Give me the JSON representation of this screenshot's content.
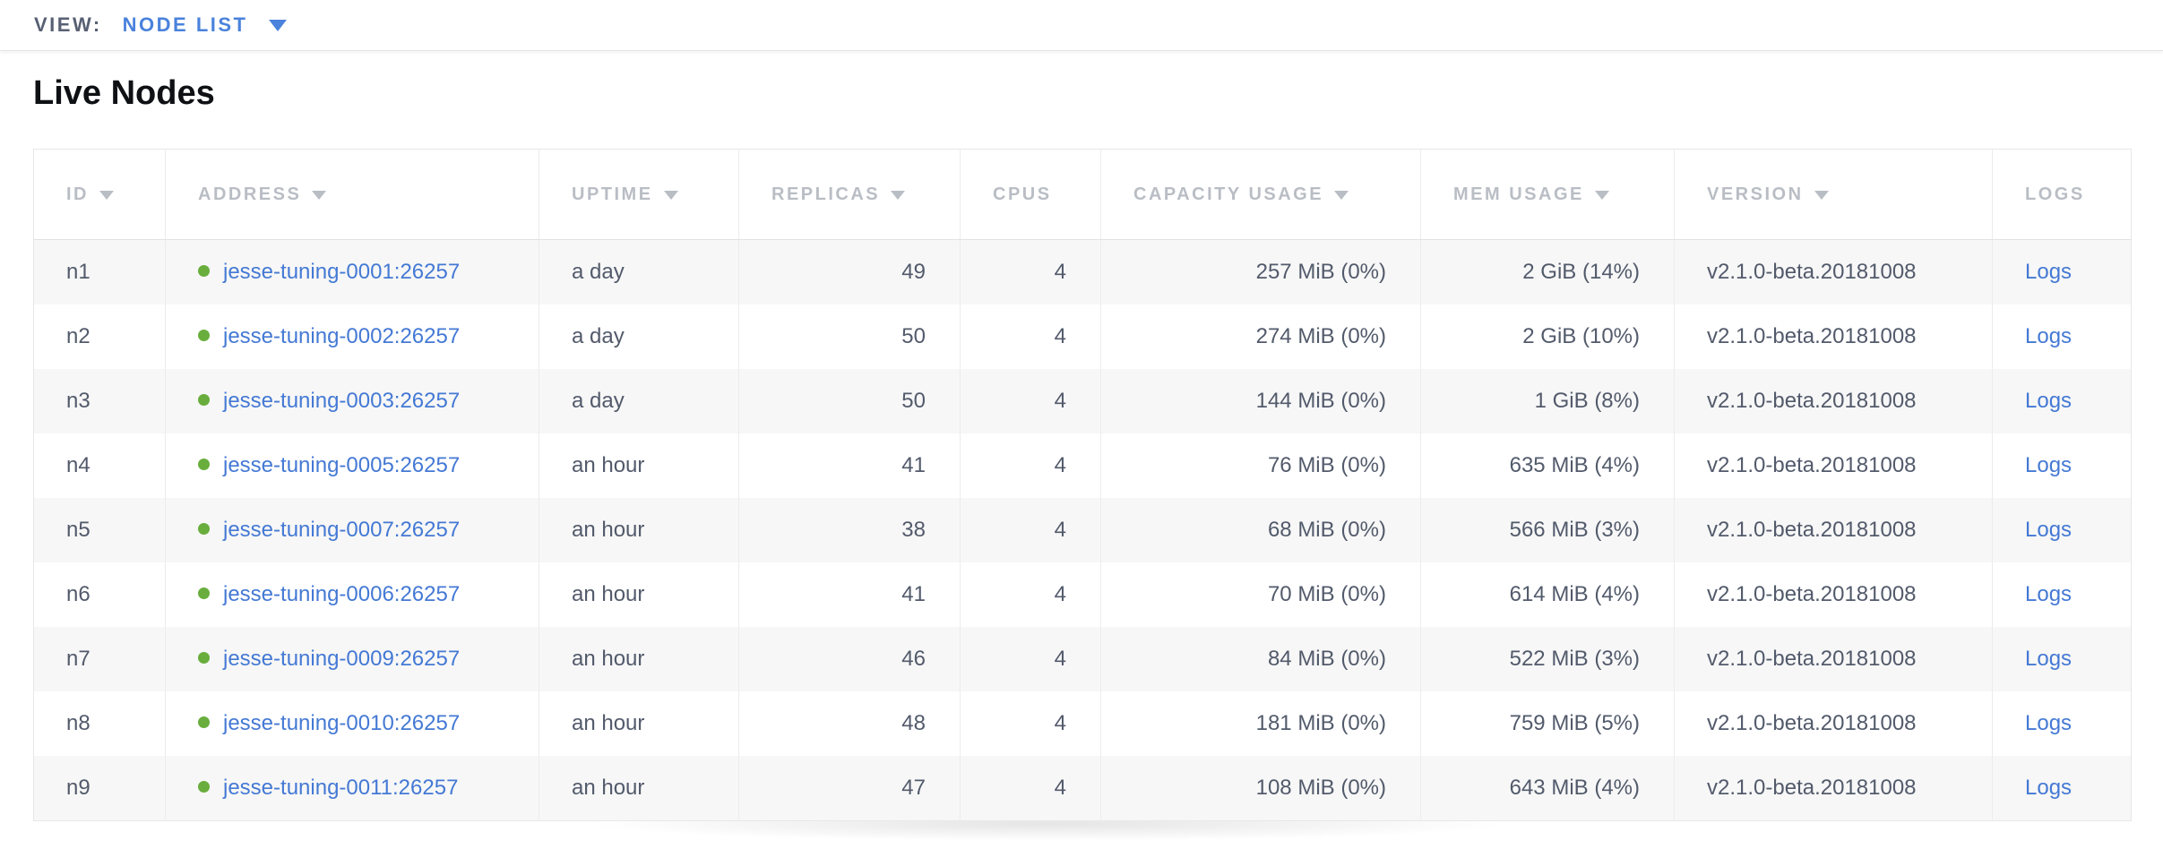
{
  "view_bar": {
    "label": "VIEW:",
    "selected": "NODE LIST"
  },
  "page": {
    "title": "Live Nodes"
  },
  "table": {
    "columns": [
      {
        "key": "id",
        "label": "ID",
        "sortable": true,
        "align": "left"
      },
      {
        "key": "address",
        "label": "ADDRESS",
        "sortable": true,
        "align": "left"
      },
      {
        "key": "uptime",
        "label": "UPTIME",
        "sortable": true,
        "align": "left"
      },
      {
        "key": "replicas",
        "label": "REPLICAS",
        "sortable": true,
        "align": "right"
      },
      {
        "key": "cpus",
        "label": "CPUS",
        "sortable": false,
        "align": "right"
      },
      {
        "key": "capacity",
        "label": "CAPACITY USAGE",
        "sortable": true,
        "align": "right"
      },
      {
        "key": "mem",
        "label": "MEM USAGE",
        "sortable": true,
        "align": "right"
      },
      {
        "key": "version",
        "label": "VERSION",
        "sortable": true,
        "align": "left"
      },
      {
        "key": "logs",
        "label": "LOGS",
        "sortable": false,
        "align": "left"
      }
    ],
    "rows": [
      {
        "id": "n1",
        "address": "jesse-tuning-0001:26257",
        "uptime": "a day",
        "replicas": "49",
        "cpus": "4",
        "capacity": "257 MiB (0%)",
        "mem": "2 GiB (14%)",
        "version": "v2.1.0-beta.20181008",
        "logs": "Logs",
        "status": "live"
      },
      {
        "id": "n2",
        "address": "jesse-tuning-0002:26257",
        "uptime": "a day",
        "replicas": "50",
        "cpus": "4",
        "capacity": "274 MiB (0%)",
        "mem": "2 GiB (10%)",
        "version": "v2.1.0-beta.20181008",
        "logs": "Logs",
        "status": "live"
      },
      {
        "id": "n3",
        "address": "jesse-tuning-0003:26257",
        "uptime": "a day",
        "replicas": "50",
        "cpus": "4",
        "capacity": "144 MiB (0%)",
        "mem": "1 GiB (8%)",
        "version": "v2.1.0-beta.20181008",
        "logs": "Logs",
        "status": "live"
      },
      {
        "id": "n4",
        "address": "jesse-tuning-0005:26257",
        "uptime": "an hour",
        "replicas": "41",
        "cpus": "4",
        "capacity": "76 MiB (0%)",
        "mem": "635 MiB (4%)",
        "version": "v2.1.0-beta.20181008",
        "logs": "Logs",
        "status": "live"
      },
      {
        "id": "n5",
        "address": "jesse-tuning-0007:26257",
        "uptime": "an hour",
        "replicas": "38",
        "cpus": "4",
        "capacity": "68 MiB (0%)",
        "mem": "566 MiB (3%)",
        "version": "v2.1.0-beta.20181008",
        "logs": "Logs",
        "status": "live"
      },
      {
        "id": "n6",
        "address": "jesse-tuning-0006:26257",
        "uptime": "an hour",
        "replicas": "41",
        "cpus": "4",
        "capacity": "70 MiB (0%)",
        "mem": "614 MiB (4%)",
        "version": "v2.1.0-beta.20181008",
        "logs": "Logs",
        "status": "live"
      },
      {
        "id": "n7",
        "address": "jesse-tuning-0009:26257",
        "uptime": "an hour",
        "replicas": "46",
        "cpus": "4",
        "capacity": "84 MiB (0%)",
        "mem": "522 MiB (3%)",
        "version": "v2.1.0-beta.20181008",
        "logs": "Logs",
        "status": "live"
      },
      {
        "id": "n8",
        "address": "jesse-tuning-0010:26257",
        "uptime": "an hour",
        "replicas": "48",
        "cpus": "4",
        "capacity": "181 MiB (0%)",
        "mem": "759 MiB (5%)",
        "version": "v2.1.0-beta.20181008",
        "logs": "Logs",
        "status": "live"
      },
      {
        "id": "n9",
        "address": "jesse-tuning-0011:26257",
        "uptime": "an hour",
        "replicas": "47",
        "cpus": "4",
        "capacity": "108 MiB (0%)",
        "mem": "643 MiB (4%)",
        "version": "v2.1.0-beta.20181008",
        "logs": "Logs",
        "status": "live"
      }
    ]
  },
  "colors": {
    "link_blue": "#4479d4",
    "view_blue": "#4a82dc",
    "status_live_green": "#69ae3d",
    "header_gray": "#b9bdc4",
    "cell_text": "#525a6b",
    "row_alt_bg": "#f7f7f7",
    "border": "#e7e7e7"
  }
}
